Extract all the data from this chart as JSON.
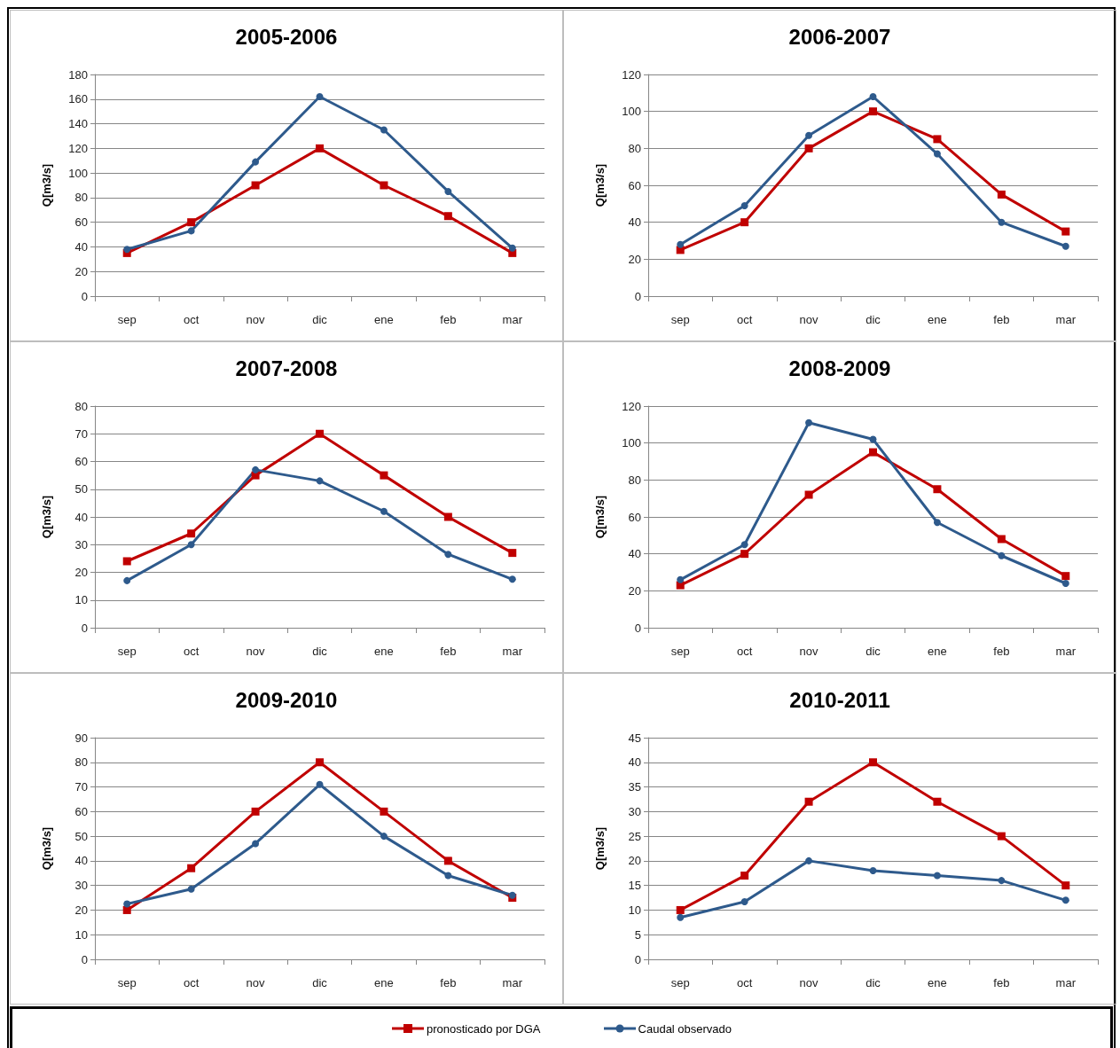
{
  "chart_data": [
    {
      "type": "line",
      "title": "2005-2006",
      "ylabel": "Q[m3/s]",
      "categories": [
        "sep",
        "oct",
        "nov",
        "dic",
        "ene",
        "feb",
        "mar"
      ],
      "ylim": [
        0,
        180
      ],
      "yticks": [
        0,
        20,
        40,
        60,
        80,
        100,
        120,
        140,
        160,
        180
      ],
      "grid": "y",
      "legend": "bottom",
      "series": [
        {
          "name": "pronosticado por DGA",
          "color": "#c00000",
          "marker": "square",
          "values": [
            35,
            60,
            90,
            120,
            90,
            65,
            35
          ]
        },
        {
          "name": "Caudal observado",
          "color": "#2e5a8c",
          "marker": "circle",
          "values": [
            38,
            53,
            109,
            162,
            135,
            85,
            39
          ]
        }
      ]
    },
    {
      "type": "line",
      "title": "2006-2007",
      "ylabel": "Q[m3/s]",
      "categories": [
        "sep",
        "oct",
        "nov",
        "dic",
        "ene",
        "feb",
        "mar"
      ],
      "ylim": [
        0,
        120
      ],
      "yticks": [
        0,
        20,
        40,
        60,
        80,
        100,
        120
      ],
      "grid": "y",
      "series": [
        {
          "color": "#c00000",
          "marker": "square",
          "values": [
            25,
            40,
            80,
            100,
            85,
            55,
            35
          ]
        },
        {
          "color": "#2e5a8c",
          "marker": "circle",
          "values": [
            28,
            49,
            87,
            108,
            77,
            40,
            27
          ]
        }
      ]
    },
    {
      "type": "line",
      "title": "2007-2008",
      "ylabel": "Q[m3/s]",
      "categories": [
        "sep",
        "oct",
        "nov",
        "dic",
        "ene",
        "feb",
        "mar"
      ],
      "ylim": [
        0,
        80
      ],
      "yticks": [
        0,
        10,
        20,
        30,
        40,
        50,
        60,
        70,
        80
      ],
      "grid": "y",
      "series": [
        {
          "color": "#c00000",
          "marker": "square",
          "values": [
            24,
            34,
            55,
            70,
            55,
            40,
            27
          ]
        },
        {
          "color": "#2e5a8c",
          "marker": "circle",
          "values": [
            17,
            30,
            57,
            53,
            42,
            26.5,
            17.5
          ]
        }
      ]
    },
    {
      "type": "line",
      "title": "2008-2009",
      "ylabel": "Q[m3/s]",
      "categories": [
        "sep",
        "oct",
        "nov",
        "dic",
        "ene",
        "feb",
        "mar"
      ],
      "ylim": [
        0,
        120
      ],
      "yticks": [
        0,
        20,
        40,
        60,
        80,
        100,
        120
      ],
      "grid": "y",
      "series": [
        {
          "color": "#c00000",
          "marker": "square",
          "values": [
            23,
            40,
            72,
            95,
            75,
            48,
            28
          ]
        },
        {
          "color": "#2e5a8c",
          "marker": "circle",
          "values": [
            26,
            45,
            111,
            102,
            57,
            39,
            24
          ]
        }
      ]
    },
    {
      "type": "line",
      "title": "2009-2010",
      "ylabel": "Q[m3/s]",
      "categories": [
        "sep",
        "oct",
        "nov",
        "dic",
        "ene",
        "feb",
        "mar"
      ],
      "ylim": [
        0,
        90
      ],
      "yticks": [
        0,
        10,
        20,
        30,
        40,
        50,
        60,
        70,
        80,
        90
      ],
      "grid": "y",
      "series": [
        {
          "color": "#c00000",
          "marker": "square",
          "values": [
            20,
            37,
            60,
            80,
            60,
            40,
            25
          ]
        },
        {
          "color": "#2e5a8c",
          "marker": "circle",
          "values": [
            22.5,
            28.5,
            47,
            71,
            50,
            34,
            26
          ]
        }
      ]
    },
    {
      "type": "line",
      "title": "2010-2011",
      "ylabel": "Q[m3/s]",
      "categories": [
        "sep",
        "oct",
        "nov",
        "dic",
        "ene",
        "feb",
        "mar"
      ],
      "ylim": [
        0,
        45
      ],
      "yticks": [
        0,
        5,
        10,
        15,
        20,
        25,
        30,
        35,
        40,
        45
      ],
      "grid": "y",
      "series": [
        {
          "color": "#c00000",
          "marker": "square",
          "values": [
            10,
            17,
            32,
            40,
            32,
            25,
            15
          ]
        },
        {
          "color": "#2e5a8c",
          "marker": "circle",
          "values": [
            8.5,
            11.7,
            20,
            18,
            17,
            16,
            12
          ]
        }
      ]
    }
  ]
}
